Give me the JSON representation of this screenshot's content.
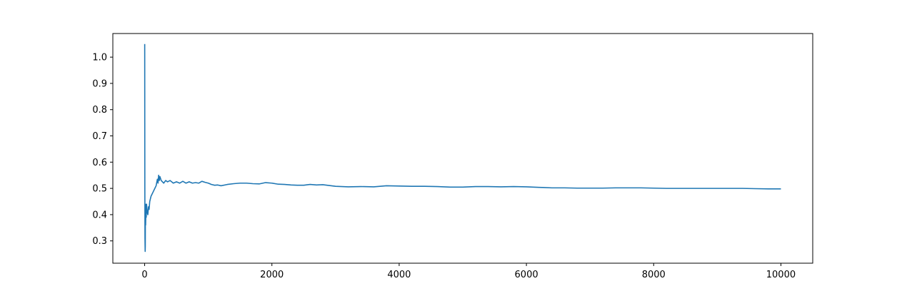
{
  "chart_data": {
    "type": "line",
    "title": "",
    "xlabel": "",
    "ylabel": "",
    "xlim": [
      -500,
      10500
    ],
    "ylim": [
      0.215,
      1.09
    ],
    "grid": false,
    "legend": null,
    "x_ticks": [
      0,
      2000,
      4000,
      6000,
      8000,
      10000
    ],
    "x_tick_labels": [
      "0",
      "2000",
      "4000",
      "6000",
      "8000",
      "10000"
    ],
    "y_ticks": [
      0.3,
      0.4,
      0.5,
      0.6,
      0.7,
      0.8,
      0.9,
      1.0
    ],
    "y_tick_labels": [
      "0.3",
      "0.4",
      "0.5",
      "0.6",
      "0.7",
      "0.8",
      "0.9",
      "1.0"
    ],
    "series": [
      {
        "color": "#1f77b4",
        "points": [
          [
            1,
            1.05
          ],
          [
            2,
            0.75
          ],
          [
            3,
            0.5
          ],
          [
            5,
            0.31
          ],
          [
            8,
            0.26
          ],
          [
            10,
            0.28
          ],
          [
            12,
            0.44
          ],
          [
            15,
            0.36
          ],
          [
            20,
            0.42
          ],
          [
            25,
            0.39
          ],
          [
            30,
            0.44
          ],
          [
            40,
            0.41
          ],
          [
            50,
            0.4
          ],
          [
            60,
            0.43
          ],
          [
            70,
            0.42
          ],
          [
            80,
            0.45
          ],
          [
            90,
            0.46
          ],
          [
            100,
            0.47
          ],
          [
            120,
            0.48
          ],
          [
            140,
            0.49
          ],
          [
            160,
            0.5
          ],
          [
            180,
            0.51
          ],
          [
            200,
            0.535
          ],
          [
            210,
            0.52
          ],
          [
            220,
            0.55
          ],
          [
            230,
            0.53
          ],
          [
            240,
            0.545
          ],
          [
            260,
            0.53
          ],
          [
            280,
            0.525
          ],
          [
            300,
            0.52
          ],
          [
            330,
            0.53
          ],
          [
            360,
            0.525
          ],
          [
            400,
            0.53
          ],
          [
            450,
            0.52
          ],
          [
            500,
            0.525
          ],
          [
            550,
            0.52
          ],
          [
            600,
            0.527
          ],
          [
            650,
            0.52
          ],
          [
            700,
            0.525
          ],
          [
            750,
            0.52
          ],
          [
            800,
            0.522
          ],
          [
            850,
            0.52
          ],
          [
            900,
            0.527
          ],
          [
            950,
            0.523
          ],
          [
            1000,
            0.52
          ],
          [
            1050,
            0.515
          ],
          [
            1100,
            0.512
          ],
          [
            1150,
            0.513
          ],
          [
            1200,
            0.51
          ],
          [
            1300,
            0.515
          ],
          [
            1400,
            0.518
          ],
          [
            1500,
            0.52
          ],
          [
            1600,
            0.52
          ],
          [
            1700,
            0.518
          ],
          [
            1800,
            0.517
          ],
          [
            1900,
            0.522
          ],
          [
            2000,
            0.52
          ],
          [
            2100,
            0.516
          ],
          [
            2200,
            0.515
          ],
          [
            2300,
            0.513
          ],
          [
            2400,
            0.512
          ],
          [
            2500,
            0.512
          ],
          [
            2600,
            0.515
          ],
          [
            2700,
            0.513
          ],
          [
            2800,
            0.514
          ],
          [
            2900,
            0.511
          ],
          [
            3000,
            0.508
          ],
          [
            3200,
            0.506
          ],
          [
            3400,
            0.507
          ],
          [
            3600,
            0.506
          ],
          [
            3800,
            0.51
          ],
          [
            4000,
            0.509
          ],
          [
            4200,
            0.508
          ],
          [
            4400,
            0.508
          ],
          [
            4600,
            0.507
          ],
          [
            4800,
            0.505
          ],
          [
            5000,
            0.505
          ],
          [
            5200,
            0.507
          ],
          [
            5400,
            0.507
          ],
          [
            5600,
            0.506
          ],
          [
            5800,
            0.507
          ],
          [
            6000,
            0.506
          ],
          [
            6200,
            0.504
          ],
          [
            6400,
            0.502
          ],
          [
            6600,
            0.502
          ],
          [
            6800,
            0.501
          ],
          [
            7000,
            0.501
          ],
          [
            7200,
            0.501
          ],
          [
            7400,
            0.502
          ],
          [
            7600,
            0.502
          ],
          [
            7800,
            0.502
          ],
          [
            8000,
            0.501
          ],
          [
            8200,
            0.5
          ],
          [
            8400,
            0.5
          ],
          [
            8600,
            0.5
          ],
          [
            8800,
            0.5
          ],
          [
            9000,
            0.5
          ],
          [
            9200,
            0.5
          ],
          [
            9400,
            0.5
          ],
          [
            9600,
            0.499
          ],
          [
            9800,
            0.498
          ],
          [
            10000,
            0.498
          ]
        ]
      }
    ]
  }
}
